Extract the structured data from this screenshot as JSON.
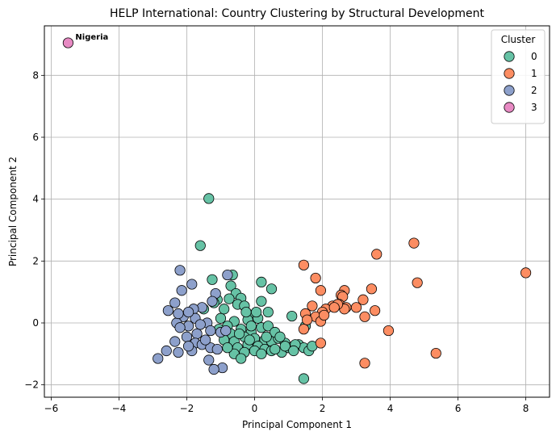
{
  "chart_data": {
    "type": "scatter",
    "title": "HELP International: Country Clustering by Structural Development",
    "xlabel": "Principal Component 1",
    "ylabel": "Principal Component 2",
    "xlim": [
      -6.2,
      8.7
    ],
    "ylim": [
      -2.4,
      9.6
    ],
    "xticks": [
      -6,
      -4,
      -2,
      0,
      2,
      4,
      6,
      8
    ],
    "yticks": [
      -2,
      0,
      2,
      4,
      6,
      8
    ],
    "grid": true,
    "legend": {
      "title": "Cluster",
      "placement": "top-right",
      "entries": [
        "0",
        "1",
        "2",
        "3"
      ]
    },
    "colors": {
      "0": "#66c2a5",
      "1": "#fc8d62",
      "2": "#8da0cb",
      "3": "#e78ac3"
    },
    "annotations": [
      {
        "text": "Nigeria",
        "x": -5.5,
        "y": 9.05
      }
    ],
    "series": [
      {
        "name": "0",
        "points": [
          [
            -1.35,
            4.02
          ],
          [
            -1.6,
            2.5
          ],
          [
            -0.65,
            1.55
          ],
          [
            -1.25,
            1.4
          ],
          [
            -0.7,
            1.2
          ],
          [
            0.2,
            1.32
          ],
          [
            0.5,
            1.1
          ],
          [
            -0.55,
            0.95
          ],
          [
            -0.75,
            0.78
          ],
          [
            -0.4,
            0.8
          ],
          [
            -1.1,
            0.75
          ],
          [
            -1.2,
            0.65
          ],
          [
            -0.5,
            0.6
          ],
          [
            0.2,
            0.7
          ],
          [
            -1.5,
            0.45
          ],
          [
            0.4,
            0.35
          ],
          [
            -0.3,
            0.55
          ],
          [
            1.1,
            0.22
          ],
          [
            -0.1,
            0.25
          ],
          [
            -1.0,
            0.15
          ],
          [
            -0.6,
            0.05
          ],
          [
            -0.2,
            0.1
          ],
          [
            0.1,
            0.15
          ],
          [
            -0.8,
            -0.1
          ],
          [
            -0.4,
            -0.2
          ],
          [
            -0.1,
            -0.3
          ],
          [
            0.2,
            -0.15
          ],
          [
            0.4,
            -0.1
          ],
          [
            -0.7,
            -0.35
          ],
          [
            -0.3,
            -0.45
          ],
          [
            0.0,
            -0.5
          ],
          [
            0.3,
            -0.55
          ],
          [
            0.5,
            -0.6
          ],
          [
            0.7,
            -0.5
          ],
          [
            0.9,
            -0.65
          ],
          [
            1.3,
            -0.7
          ],
          [
            1.5,
            -0.1
          ],
          [
            1.45,
            -0.8
          ],
          [
            1.6,
            -0.9
          ],
          [
            1.7,
            -0.75
          ],
          [
            -0.9,
            -0.55
          ],
          [
            -0.6,
            -0.6
          ],
          [
            -0.5,
            -0.8
          ],
          [
            -0.2,
            -0.7
          ],
          [
            0.1,
            -0.75
          ],
          [
            0.3,
            -0.85
          ],
          [
            0.5,
            -0.9
          ],
          [
            0.8,
            -0.95
          ],
          [
            1.0,
            -0.8
          ],
          [
            1.2,
            -0.7
          ],
          [
            -0.3,
            -0.95
          ],
          [
            0.0,
            -0.9
          ],
          [
            0.2,
            -1.0
          ],
          [
            -0.6,
            -1.0
          ],
          [
            -0.4,
            -1.15
          ],
          [
            -0.8,
            -0.8
          ],
          [
            -0.1,
            -0.1
          ],
          [
            0.6,
            -0.3
          ],
          [
            1.45,
            -1.8
          ],
          [
            -0.25,
            0.35
          ],
          [
            0.05,
            0.35
          ],
          [
            -0.9,
            0.45
          ],
          [
            0.75,
            -0.45
          ],
          [
            0.6,
            -0.85
          ],
          [
            -0.15,
            -0.55
          ],
          [
            0.35,
            -0.45
          ],
          [
            -0.45,
            -0.35
          ],
          [
            -1.05,
            -0.2
          ],
          [
            0.9,
            -0.75
          ],
          [
            1.15,
            -0.9
          ]
        ]
      },
      {
        "name": "1",
        "points": [
          [
            8.0,
            1.62
          ],
          [
            4.7,
            2.58
          ],
          [
            3.6,
            2.22
          ],
          [
            1.45,
            1.87
          ],
          [
            1.8,
            1.45
          ],
          [
            4.8,
            1.3
          ],
          [
            2.65,
            1.05
          ],
          [
            3.45,
            1.1
          ],
          [
            1.95,
            1.05
          ],
          [
            2.55,
            0.9
          ],
          [
            2.6,
            0.85
          ],
          [
            3.2,
            0.75
          ],
          [
            2.5,
            0.6
          ],
          [
            2.3,
            0.55
          ],
          [
            2.1,
            0.45
          ],
          [
            1.7,
            0.55
          ],
          [
            2.7,
            0.5
          ],
          [
            3.0,
            0.5
          ],
          [
            1.5,
            0.3
          ],
          [
            2.0,
            0.35
          ],
          [
            3.55,
            0.4
          ],
          [
            2.65,
            0.45
          ],
          [
            1.8,
            0.2
          ],
          [
            3.25,
            0.2
          ],
          [
            1.95,
            0.05
          ],
          [
            1.45,
            -0.2
          ],
          [
            1.95,
            -0.65
          ],
          [
            3.95,
            -0.25
          ],
          [
            5.35,
            -0.98
          ],
          [
            3.25,
            -1.3
          ],
          [
            2.45,
            0.6
          ],
          [
            2.35,
            0.5
          ],
          [
            2.05,
            0.25
          ],
          [
            1.55,
            0.1
          ]
        ]
      },
      {
        "name": "2",
        "points": [
          [
            -2.2,
            1.7
          ],
          [
            -1.85,
            1.25
          ],
          [
            -2.15,
            1.05
          ],
          [
            -1.15,
            0.95
          ],
          [
            -0.8,
            1.55
          ],
          [
            -2.35,
            0.65
          ],
          [
            -1.55,
            0.5
          ],
          [
            -1.8,
            0.45
          ],
          [
            -2.55,
            0.4
          ],
          [
            -1.25,
            0.7
          ],
          [
            -2.1,
            0.2
          ],
          [
            -1.75,
            0.15
          ],
          [
            -2.3,
            0.0
          ],
          [
            -1.4,
            0.0
          ],
          [
            -1.95,
            -0.1
          ],
          [
            -2.2,
            -0.15
          ],
          [
            -1.3,
            -0.25
          ],
          [
            -1.0,
            -0.3
          ],
          [
            -1.7,
            -0.35
          ],
          [
            -2.0,
            -0.45
          ],
          [
            -2.35,
            -0.6
          ],
          [
            -1.75,
            -0.65
          ],
          [
            -1.55,
            -0.7
          ],
          [
            -1.3,
            -0.8
          ],
          [
            -1.85,
            -0.9
          ],
          [
            -2.25,
            -0.95
          ],
          [
            -2.6,
            -0.9
          ],
          [
            -2.85,
            -1.15
          ],
          [
            -1.35,
            -1.2
          ],
          [
            -0.95,
            -1.45
          ],
          [
            -1.2,
            -1.5
          ],
          [
            -0.85,
            -0.25
          ],
          [
            -1.6,
            -0.05
          ],
          [
            -1.95,
            0.35
          ],
          [
            -2.25,
            0.3
          ],
          [
            -1.1,
            -0.85
          ],
          [
            -1.45,
            -0.55
          ],
          [
            -1.95,
            -0.75
          ]
        ]
      },
      {
        "name": "3",
        "points": [
          [
            -5.5,
            9.05
          ]
        ]
      }
    ]
  }
}
